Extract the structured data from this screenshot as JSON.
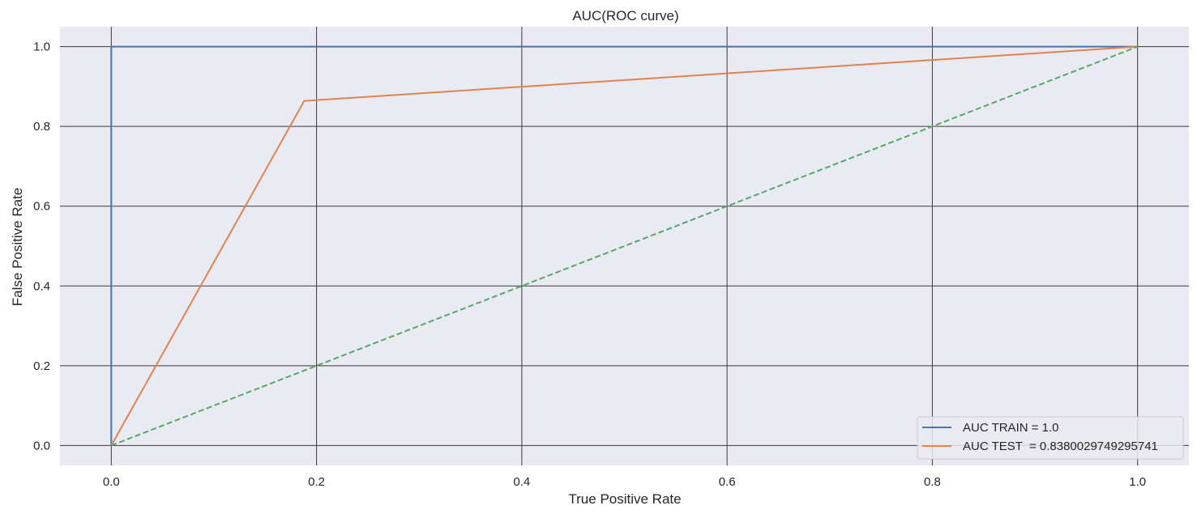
{
  "chart_data": {
    "type": "line",
    "title": "AUC(ROC curve)",
    "xlabel": "True Positive Rate",
    "ylabel": "False Positive Rate",
    "xlim": [
      -0.05,
      1.05
    ],
    "ylim": [
      -0.05,
      1.05
    ],
    "xticks": [
      "0.0",
      "0.2",
      "0.4",
      "0.6",
      "0.8",
      "1.0"
    ],
    "yticks": [
      "0.0",
      "0.2",
      "0.4",
      "0.6",
      "0.8",
      "1.0"
    ],
    "grid": true,
    "legend_position": "lower-right",
    "series": [
      {
        "name": "AUC TRAIN = 1.0",
        "x": [
          0.0,
          0.0,
          1.0
        ],
        "y": [
          0.0,
          1.0,
          1.0
        ],
        "color": "#4c72b0",
        "style": "solid"
      },
      {
        "name": "AUC TEST  = 0.8380029749295741",
        "x": [
          0.0,
          0.188,
          1.0
        ],
        "y": [
          0.0,
          0.864,
          1.0
        ],
        "color": "#dd8452",
        "style": "solid"
      },
      {
        "name": "",
        "x": [
          0.0,
          1.0
        ],
        "y": [
          0.0,
          1.0
        ],
        "color": "#55a868",
        "style": "dashed"
      }
    ],
    "colors": {
      "plot_background": "#eaeaf2",
      "grid": "#3a3a3a"
    }
  }
}
